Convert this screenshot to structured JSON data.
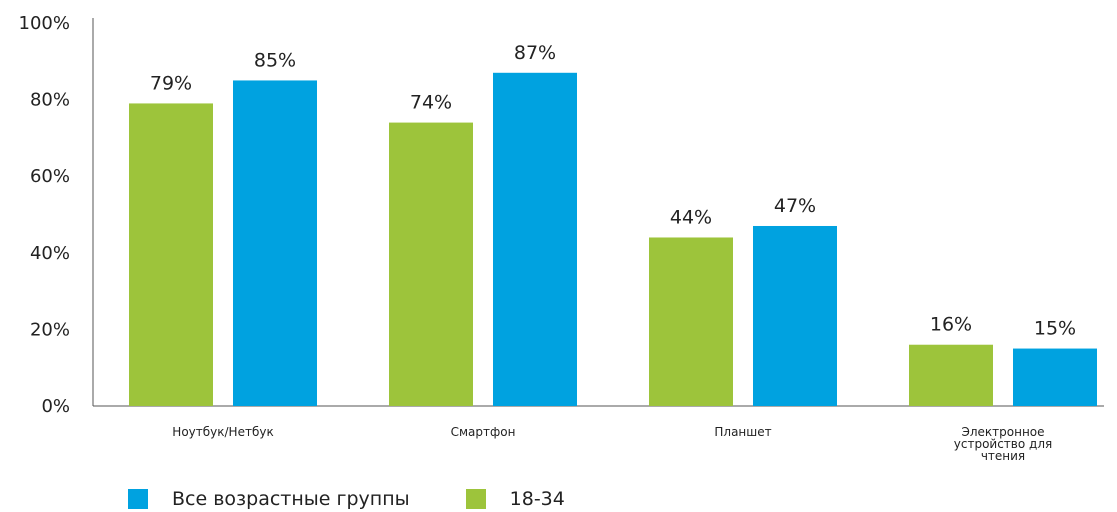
{
  "chart_data": {
    "type": "bar",
    "categories": [
      [
        "Ноутбук/Нетбук"
      ],
      [
        "Смартфон"
      ],
      [
        "Планшет"
      ],
      [
        "Электронное",
        "устройство для",
        "чтения"
      ]
    ],
    "series": [
      {
        "name": "18-34",
        "color": "#9DC43B",
        "values": [
          79,
          74,
          44,
          16
        ],
        "labels": [
          "79%",
          "74%",
          "44%",
          "16%"
        ]
      },
      {
        "name": "Все возрастные группы",
        "color": "#00A2E0",
        "values": [
          85,
          87,
          47,
          15
        ],
        "labels": [
          "85%",
          "87%",
          "47%",
          "15%"
        ]
      }
    ],
    "ylim": [
      0,
      100
    ],
    "yticks": [
      "0%",
      "20%",
      "40%",
      "60%",
      "80%",
      "100%"
    ],
    "grid": false,
    "legend_position": "bottom-left",
    "legend": [
      {
        "label": "Все возрастные группы",
        "color": "#00A2E0"
      },
      {
        "label": "18-34",
        "color": "#9DC43B"
      }
    ]
  }
}
